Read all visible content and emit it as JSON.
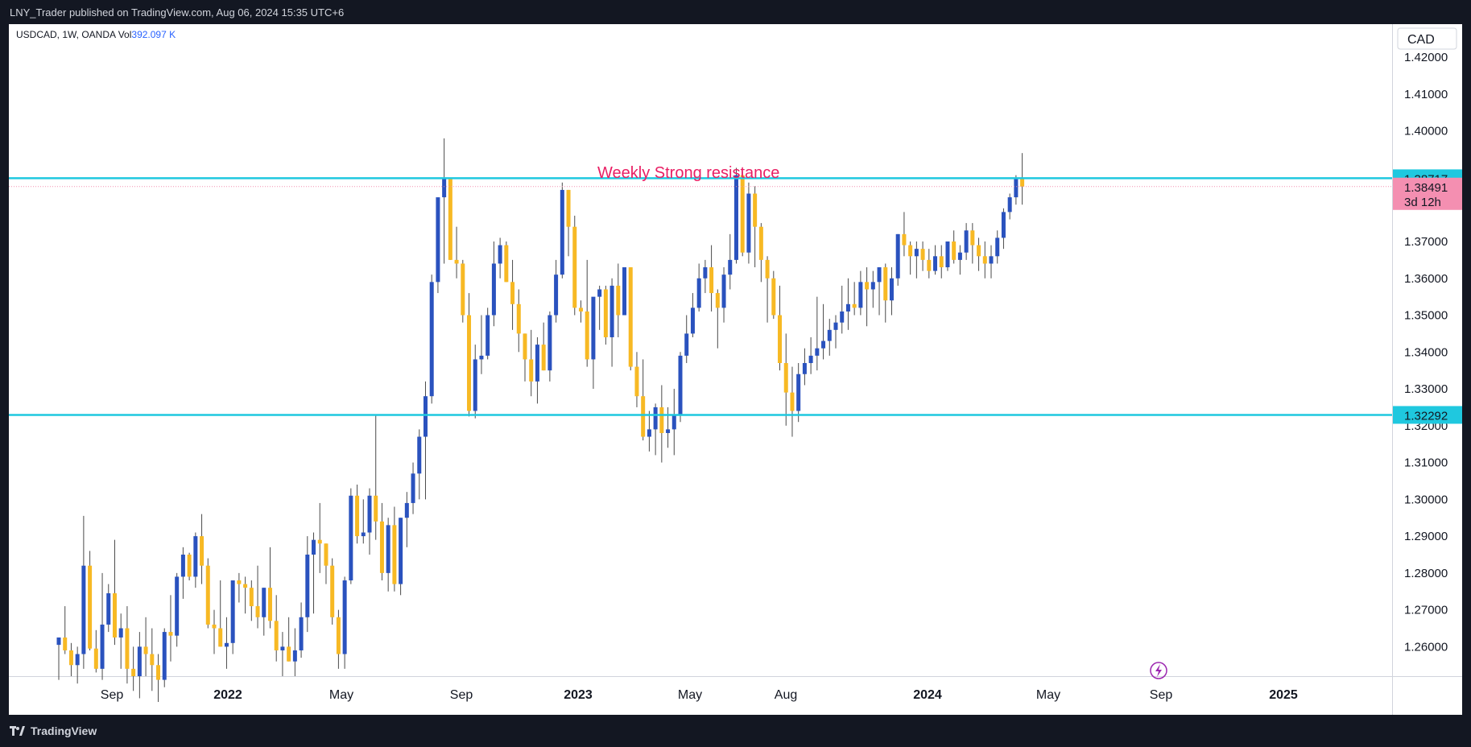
{
  "header": {
    "publish_text": "LNY_Trader published on TradingView.com, Aug 06, 2024 15:35 UTC+6"
  },
  "footer": {
    "brand": "TradingView"
  },
  "symbol_bar": {
    "symbol": "USDCAD, 1W, OANDA",
    "vol_label": "Vol",
    "vol_value": "392.097 K"
  },
  "currency": "CAD",
  "colors": {
    "up": "#2a52be",
    "down": "#f7b924",
    "level": "#1fc8df",
    "annotation": "#e91e63",
    "price_tag": "#f48fb1"
  },
  "chart_data": {
    "type": "candlestick",
    "timeframe": "1W",
    "x_tick_labels": [
      "Sep",
      "2022",
      "May",
      "Sep",
      "2023",
      "May",
      "Aug",
      "2024",
      "May",
      "Sep",
      "2025"
    ],
    "y_tick_labels": [
      "1.42000",
      "1.41000",
      "1.40000",
      "1.37000",
      "1.36000",
      "1.35000",
      "1.34000",
      "1.33000",
      "1.32000",
      "1.31000",
      "1.30000",
      "1.29000",
      "1.28000",
      "1.27000",
      "1.26000"
    ],
    "ylim": [
      1.252,
      1.429
    ],
    "levels": [
      {
        "price": 1.38717,
        "label": "1.38717"
      },
      {
        "price": 1.32292,
        "label": "1.32292"
      }
    ],
    "current_price": {
      "price": 1.38491,
      "label": "1.38491",
      "countdown": "3d 12h"
    },
    "annotation": "Weekly Strong resistance",
    "candles_ohlc": [
      [
        1.2605,
        1.2625,
        1.251,
        1.2625
      ],
      [
        1.2625,
        1.271,
        1.258,
        1.259
      ],
      [
        1.259,
        1.261,
        1.252,
        1.255
      ],
      [
        1.255,
        1.26,
        1.25,
        1.258
      ],
      [
        1.258,
        1.2955,
        1.254,
        1.282
      ],
      [
        1.282,
        1.286,
        1.259,
        1.2595
      ],
      [
        1.2595,
        1.2645,
        1.253,
        1.254
      ],
      [
        1.254,
        1.28,
        1.251,
        1.266
      ],
      [
        1.266,
        1.277,
        1.264,
        1.2745
      ],
      [
        1.2745,
        1.289,
        1.2605,
        1.2625
      ],
      [
        1.2625,
        1.269,
        1.254,
        1.265
      ],
      [
        1.265,
        1.271,
        1.25,
        1.254
      ],
      [
        1.254,
        1.26,
        1.248,
        1.252
      ],
      [
        1.252,
        1.264,
        1.246,
        1.26
      ],
      [
        1.26,
        1.268,
        1.252,
        1.258
      ],
      [
        1.258,
        1.265,
        1.248,
        1.255
      ],
      [
        1.255,
        1.258,
        1.245,
        1.251
      ],
      [
        1.251,
        1.265,
        1.249,
        1.264
      ],
      [
        1.264,
        1.274,
        1.256,
        1.263
      ],
      [
        1.263,
        1.28,
        1.26,
        1.279
      ],
      [
        1.279,
        1.287,
        1.273,
        1.285
      ],
      [
        1.285,
        1.2855,
        1.278,
        1.279
      ],
      [
        1.279,
        1.291,
        1.276,
        1.29
      ],
      [
        1.29,
        1.296,
        1.277,
        1.282
      ],
      [
        1.282,
        1.284,
        1.265,
        1.266
      ],
      [
        1.266,
        1.27,
        1.258,
        1.265
      ],
      [
        1.265,
        1.278,
        1.26,
        1.26
      ],
      [
        1.26,
        1.268,
        1.254,
        1.261
      ],
      [
        1.261,
        1.268,
        1.258,
        1.278
      ],
      [
        1.278,
        1.28,
        1.272,
        1.277
      ],
      [
        1.277,
        1.279,
        1.269,
        1.276
      ],
      [
        1.276,
        1.278,
        1.267,
        1.271
      ],
      [
        1.271,
        1.282,
        1.265,
        1.268
      ],
      [
        1.268,
        1.276,
        1.263,
        1.276
      ],
      [
        1.276,
        1.287,
        1.265,
        1.267
      ],
      [
        1.267,
        1.274,
        1.256,
        1.259
      ],
      [
        1.259,
        1.264,
        1.252,
        1.26
      ],
      [
        1.26,
        1.268,
        1.256,
        1.256
      ],
      [
        1.256,
        1.265,
        1.252,
        1.259
      ],
      [
        1.259,
        1.272,
        1.257,
        1.268
      ],
      [
        1.268,
        1.29,
        1.264,
        1.285
      ],
      [
        1.285,
        1.291,
        1.269,
        1.289
      ],
      [
        1.289,
        1.299,
        1.28,
        1.288
      ],
      [
        1.288,
        1.288,
        1.277,
        1.282
      ],
      [
        1.282,
        1.284,
        1.266,
        1.268
      ],
      [
        1.268,
        1.27,
        1.254,
        1.258
      ],
      [
        1.258,
        1.279,
        1.254,
        1.278
      ],
      [
        1.278,
        1.303,
        1.277,
        1.301
      ],
      [
        1.301,
        1.304,
        1.288,
        1.29
      ],
      [
        1.29,
        1.3,
        1.288,
        1.291
      ],
      [
        1.291,
        1.303,
        1.285,
        1.301
      ],
      [
        1.301,
        1.323,
        1.289,
        1.294
      ],
      [
        1.294,
        1.299,
        1.278,
        1.28
      ],
      [
        1.28,
        1.295,
        1.275,
        1.293
      ],
      [
        1.293,
        1.298,
        1.275,
        1.277
      ],
      [
        1.277,
        1.295,
        1.274,
        1.295
      ],
      [
        1.295,
        1.302,
        1.287,
        1.299
      ],
      [
        1.299,
        1.31,
        1.296,
        1.307
      ],
      [
        1.307,
        1.319,
        1.3,
        1.317
      ],
      [
        1.317,
        1.332,
        1.3,
        1.328
      ],
      [
        1.328,
        1.361,
        1.326,
        1.359
      ],
      [
        1.359,
        1.381,
        1.356,
        1.382
      ],
      [
        1.382,
        1.398,
        1.364,
        1.387
      ],
      [
        1.387,
        1.387,
        1.365,
        1.365
      ],
      [
        1.365,
        1.374,
        1.36,
        1.364
      ],
      [
        1.364,
        1.365,
        1.348,
        1.35
      ],
      [
        1.35,
        1.356,
        1.3225,
        1.324
      ],
      [
        1.324,
        1.342,
        1.322,
        1.338
      ],
      [
        1.338,
        1.35,
        1.334,
        1.339
      ],
      [
        1.339,
        1.352,
        1.338,
        1.35
      ],
      [
        1.35,
        1.37,
        1.347,
        1.364
      ],
      [
        1.364,
        1.371,
        1.36,
        1.369
      ],
      [
        1.369,
        1.37,
        1.359,
        1.359
      ],
      [
        1.359,
        1.365,
        1.346,
        1.353
      ],
      [
        1.353,
        1.357,
        1.34,
        1.345
      ],
      [
        1.345,
        1.345,
        1.332,
        1.338
      ],
      [
        1.338,
        1.346,
        1.328,
        1.332
      ],
      [
        1.332,
        1.344,
        1.326,
        1.342
      ],
      [
        1.342,
        1.348,
        1.335,
        1.335
      ],
      [
        1.335,
        1.351,
        1.332,
        1.35
      ],
      [
        1.35,
        1.365,
        1.348,
        1.361
      ],
      [
        1.361,
        1.386,
        1.36,
        1.384
      ],
      [
        1.384,
        1.384,
        1.366,
        1.374
      ],
      [
        1.374,
        1.377,
        1.35,
        1.352
      ],
      [
        1.352,
        1.354,
        1.348,
        1.351
      ],
      [
        1.351,
        1.365,
        1.336,
        1.338
      ],
      [
        1.338,
        1.354,
        1.33,
        1.355
      ],
      [
        1.355,
        1.358,
        1.346,
        1.357
      ],
      [
        1.357,
        1.358,
        1.342,
        1.344
      ],
      [
        1.344,
        1.36,
        1.336,
        1.358
      ],
      [
        1.358,
        1.364,
        1.344,
        1.35
      ],
      [
        1.35,
        1.362,
        1.35,
        1.363
      ],
      [
        1.363,
        1.363,
        1.335,
        1.336
      ],
      [
        1.336,
        1.34,
        1.325,
        1.328
      ],
      [
        1.328,
        1.338,
        1.316,
        1.317
      ],
      [
        1.317,
        1.324,
        1.313,
        1.319
      ],
      [
        1.319,
        1.326,
        1.312,
        1.325
      ],
      [
        1.325,
        1.331,
        1.31,
        1.318
      ],
      [
        1.318,
        1.325,
        1.314,
        1.319
      ],
      [
        1.319,
        1.33,
        1.312,
        1.323
      ],
      [
        1.323,
        1.34,
        1.321,
        1.339
      ],
      [
        1.339,
        1.35,
        1.337,
        1.345
      ],
      [
        1.345,
        1.356,
        1.344,
        1.352
      ],
      [
        1.352,
        1.364,
        1.351,
        1.36
      ],
      [
        1.36,
        1.365,
        1.356,
        1.363
      ],
      [
        1.363,
        1.369,
        1.351,
        1.356
      ],
      [
        1.356,
        1.357,
        1.341,
        1.352
      ],
      [
        1.352,
        1.363,
        1.348,
        1.361
      ],
      [
        1.361,
        1.372,
        1.357,
        1.365
      ],
      [
        1.365,
        1.39,
        1.364,
        1.388
      ],
      [
        1.388,
        1.389,
        1.366,
        1.367
      ],
      [
        1.367,
        1.386,
        1.364,
        1.383
      ],
      [
        1.383,
        1.385,
        1.363,
        1.374
      ],
      [
        1.374,
        1.375,
        1.359,
        1.365
      ],
      [
        1.365,
        1.366,
        1.348,
        1.36
      ],
      [
        1.36,
        1.362,
        1.349,
        1.35
      ],
      [
        1.35,
        1.358,
        1.335,
        1.337
      ],
      [
        1.337,
        1.345,
        1.32,
        1.329
      ],
      [
        1.329,
        1.336,
        1.317,
        1.324
      ],
      [
        1.324,
        1.337,
        1.321,
        1.334
      ],
      [
        1.334,
        1.341,
        1.331,
        1.337
      ],
      [
        1.337,
        1.344,
        1.334,
        1.339
      ],
      [
        1.339,
        1.355,
        1.335,
        1.341
      ],
      [
        1.341,
        1.353,
        1.338,
        1.343
      ],
      [
        1.343,
        1.349,
        1.339,
        1.346
      ],
      [
        1.346,
        1.35,
        1.341,
        1.348
      ],
      [
        1.348,
        1.358,
        1.345,
        1.351
      ],
      [
        1.351,
        1.36,
        1.346,
        1.353
      ],
      [
        1.353,
        1.359,
        1.35,
        1.352
      ],
      [
        1.352,
        1.362,
        1.35,
        1.359
      ],
      [
        1.359,
        1.363,
        1.347,
        1.357
      ],
      [
        1.357,
        1.362,
        1.352,
        1.359
      ],
      [
        1.359,
        1.363,
        1.35,
        1.363
      ],
      [
        1.363,
        1.364,
        1.348,
        1.354
      ],
      [
        1.354,
        1.363,
        1.35,
        1.36
      ],
      [
        1.36,
        1.372,
        1.358,
        1.372
      ],
      [
        1.372,
        1.378,
        1.366,
        1.369
      ],
      [
        1.369,
        1.37,
        1.361,
        1.366
      ],
      [
        1.366,
        1.37,
        1.36,
        1.368
      ],
      [
        1.368,
        1.37,
        1.362,
        1.365
      ],
      [
        1.365,
        1.368,
        1.36,
        1.362
      ],
      [
        1.362,
        1.369,
        1.361,
        1.366
      ],
      [
        1.366,
        1.369,
        1.36,
        1.363
      ],
      [
        1.363,
        1.37,
        1.362,
        1.37
      ],
      [
        1.37,
        1.373,
        1.364,
        1.365
      ],
      [
        1.365,
        1.369,
        1.361,
        1.367
      ],
      [
        1.367,
        1.375,
        1.365,
        1.373
      ],
      [
        1.373,
        1.375,
        1.364,
        1.369
      ],
      [
        1.369,
        1.371,
        1.362,
        1.366
      ],
      [
        1.366,
        1.37,
        1.36,
        1.364
      ],
      [
        1.364,
        1.369,
        1.36,
        1.366
      ],
      [
        1.366,
        1.373,
        1.364,
        1.371
      ],
      [
        1.371,
        1.379,
        1.368,
        1.378
      ],
      [
        1.378,
        1.383,
        1.376,
        1.382
      ],
      [
        1.382,
        1.388,
        1.38,
        1.387
      ],
      [
        1.387,
        1.394,
        1.38,
        1.3849
      ]
    ]
  }
}
